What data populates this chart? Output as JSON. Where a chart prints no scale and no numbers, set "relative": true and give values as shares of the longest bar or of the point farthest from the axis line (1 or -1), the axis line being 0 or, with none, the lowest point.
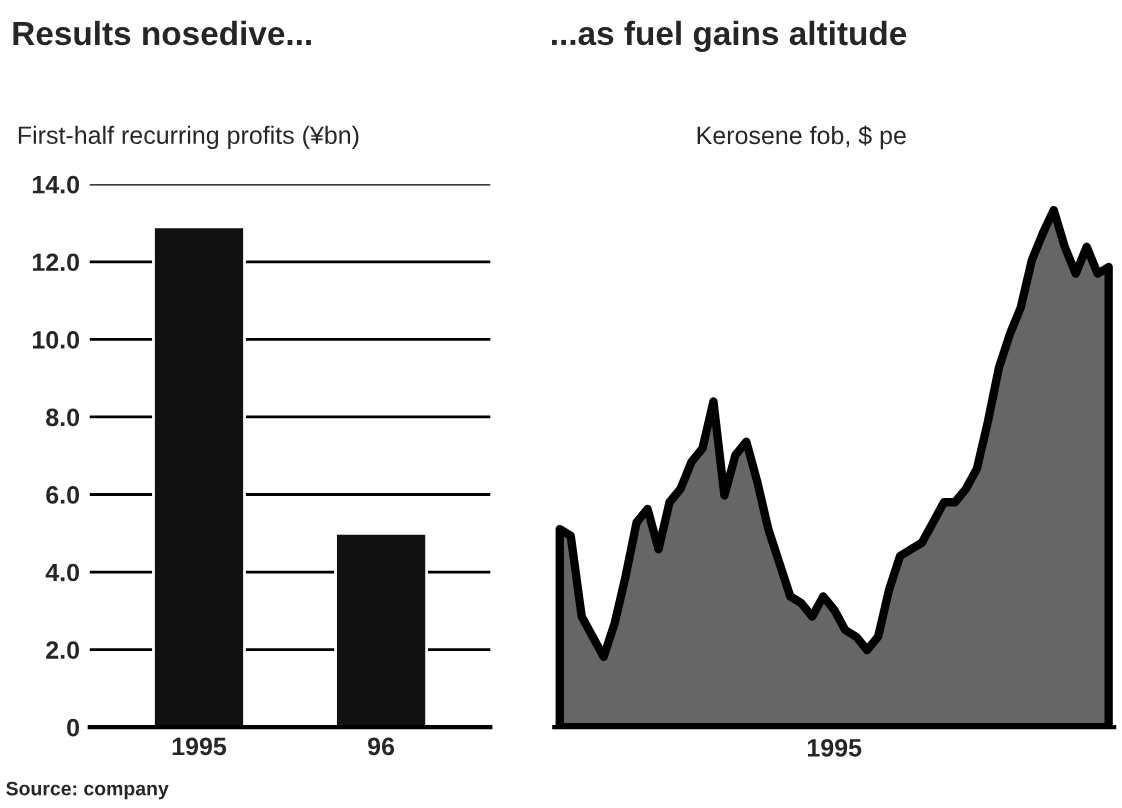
{
  "chart_data": [
    {
      "type": "bar",
      "title": "Results nosedive...",
      "subtitle": "First-half recurring profits (¥bn)",
      "categories": [
        "1995",
        "96"
      ],
      "values": [
        12.9,
        5.0
      ],
      "color": "#111111",
      "ylim": [
        0,
        14
      ],
      "yticks": [
        {
          "value": 0,
          "label": "0"
        },
        {
          "value": 2,
          "label": "2.0"
        },
        {
          "value": 4,
          "label": "4.0"
        },
        {
          "value": 6,
          "label": "6.0"
        },
        {
          "value": 8,
          "label": "8.0"
        },
        {
          "value": 10,
          "label": "10.0"
        },
        {
          "value": 12,
          "label": "12.0"
        },
        {
          "value": 14,
          "label": "14.0"
        }
      ],
      "grid": "y",
      "annotations": [
        "Source: company"
      ]
    },
    {
      "type": "area",
      "title": "...as fuel gains altitude",
      "subtitle": "Kerosene fob, $ pe",
      "xlabel": "1995",
      "relative": true,
      "categories": [
        null,
        null,
        null,
        null,
        null,
        null,
        null,
        null,
        null,
        null,
        null,
        null,
        null,
        null,
        null,
        null,
        null,
        null,
        null,
        null,
        null,
        null,
        null,
        null,
        null,
        null,
        null,
        null,
        null,
        null,
        null,
        null,
        null,
        null,
        null,
        null,
        null,
        null,
        null,
        null,
        null,
        null,
        null,
        null,
        null,
        null,
        null,
        null,
        null,
        null,
        null
      ],
      "series": [
        {
          "color": "#666666",
          "values": [
            0.383,
            0.37,
            0.214,
            0.175,
            0.136,
            0.201,
            0.292,
            0.396,
            0.422,
            0.344,
            0.435,
            0.461,
            0.513,
            0.539,
            0.63,
            0.448,
            0.526,
            0.552,
            0.474,
            0.383,
            0.318,
            0.253,
            0.24,
            0.214,
            0.253,
            0.227,
            0.188,
            0.175,
            0.149,
            0.175,
            0.266,
            0.331,
            0.344,
            0.357,
            0.396,
            0.435,
            0.435,
            0.461,
            0.5,
            0.591,
            0.695,
            0.76,
            0.812,
            0.903,
            0.955,
            1.0,
            0.929,
            0.877,
            0.929,
            0.877,
            0.89
          ]
        }
      ]
    }
  ]
}
